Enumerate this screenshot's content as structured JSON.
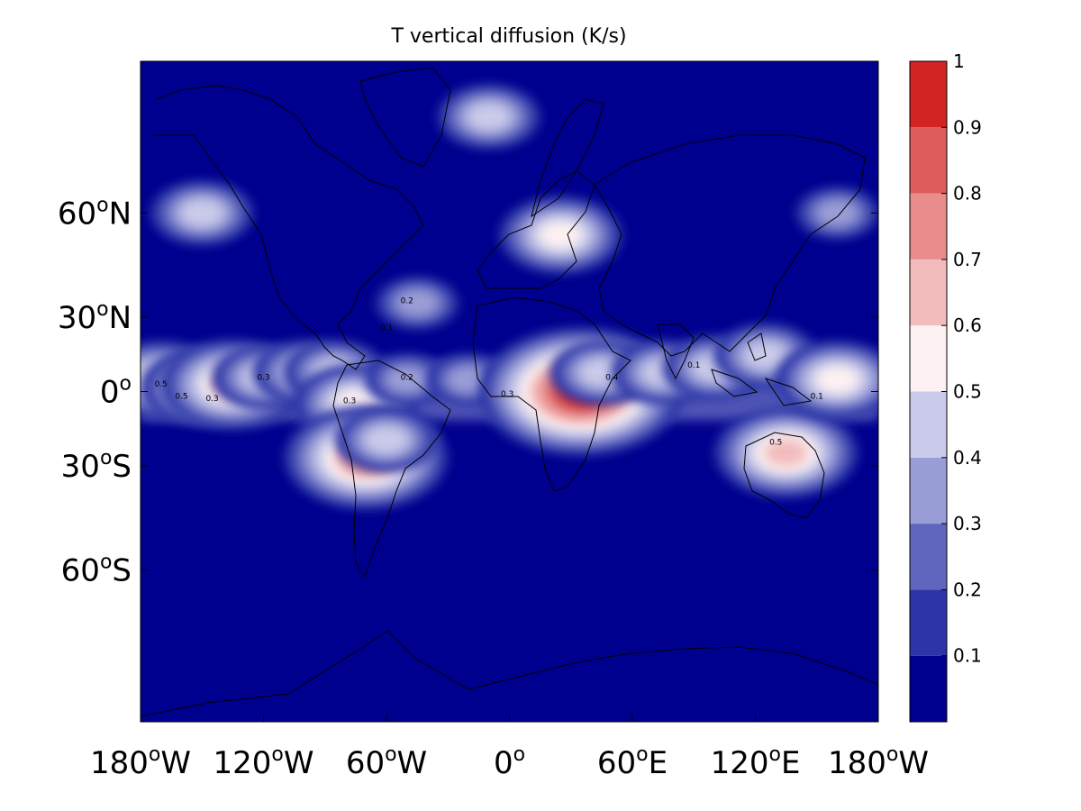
{
  "chart_data": {
    "type": "heatmap",
    "title": "T vertical diffusion (K/s)",
    "projection": "mercator",
    "x_range": [
      -180,
      180
    ],
    "y_range": [
      -80,
      80
    ],
    "x_ticks": [
      {
        "value": -180,
        "label": "180",
        "sup": "o",
        "hem": "W"
      },
      {
        "value": -120,
        "label": "120",
        "sup": "o",
        "hem": "W"
      },
      {
        "value": -60,
        "label": "60",
        "sup": "o",
        "hem": "W"
      },
      {
        "value": 0,
        "label": "0",
        "sup": "o",
        "hem": ""
      },
      {
        "value": 60,
        "label": "60",
        "sup": "o",
        "hem": "E"
      },
      {
        "value": 120,
        "label": "120",
        "sup": "o",
        "hem": "E"
      },
      {
        "value": 180,
        "label": "180",
        "sup": "o",
        "hem": "W"
      }
    ],
    "y_ticks": [
      {
        "value": 60,
        "label": "60",
        "sup": "o",
        "hem": "N"
      },
      {
        "value": 30,
        "label": "30",
        "sup": "o",
        "hem": "N"
      },
      {
        "value": 0,
        "label": "0",
        "sup": "o",
        "hem": ""
      },
      {
        "value": -30,
        "label": "30",
        "sup": "o",
        "hem": "S"
      },
      {
        "value": -60,
        "label": "60",
        "sup": "o",
        "hem": "S"
      }
    ],
    "colorbar": {
      "range": [
        0,
        1
      ],
      "tick_labels": [
        "0.1",
        "0.2",
        "0.3",
        "0.4",
        "0.5",
        "0.6",
        "0.7",
        "0.8",
        "0.9",
        "1"
      ],
      "levels": [
        0,
        0.1,
        0.2,
        0.3,
        0.4,
        0.5,
        0.6,
        0.7,
        0.8,
        0.9,
        1.0
      ],
      "colors": [
        "#00008e",
        "#2c34a6",
        "#6066be",
        "#9a9ed6",
        "#cacbea",
        "#fdf1f1",
        "#f2bcbc",
        "#e88c8c",
        "#dd5c5c",
        "#d32424"
      ]
    },
    "regions": [
      {
        "lon": -170,
        "lat": 5,
        "value": 0.5
      },
      {
        "lon": -150,
        "lat": 2,
        "value": 0.55
      },
      {
        "lon": -135,
        "lat": 3,
        "value": 0.6
      },
      {
        "lon": -120,
        "lat": 6,
        "value": 0.45
      },
      {
        "lon": -100,
        "lat": 8,
        "value": 0.4
      },
      {
        "lon": -85,
        "lat": 8,
        "value": 0.4
      },
      {
        "lon": -75,
        "lat": -5,
        "value": 0.5
      },
      {
        "lon": -70,
        "lat": -27,
        "value": 0.7
      },
      {
        "lon": -60,
        "lat": -20,
        "value": 0.45
      },
      {
        "lon": -50,
        "lat": 5,
        "value": 0.35
      },
      {
        "lon": -20,
        "lat": 5,
        "value": 0.3
      },
      {
        "lon": 15,
        "lat": 3,
        "value": 0.4
      },
      {
        "lon": 35,
        "lat": 0,
        "value": 0.9
      },
      {
        "lon": 25,
        "lat": 55,
        "value": 0.55
      },
      {
        "lon": 45,
        "lat": 8,
        "value": 0.45
      },
      {
        "lon": 75,
        "lat": 8,
        "value": 0.4
      },
      {
        "lon": 100,
        "lat": 10,
        "value": 0.45
      },
      {
        "lon": 125,
        "lat": 15,
        "value": 0.4
      },
      {
        "lon": 135,
        "lat": -25,
        "value": 0.65
      },
      {
        "lon": 160,
        "lat": 5,
        "value": 0.55
      },
      {
        "lon": -150,
        "lat": 60,
        "value": 0.4
      },
      {
        "lon": -45,
        "lat": 35,
        "value": 0.35
      },
      {
        "lon": -10,
        "lat": 75,
        "value": 0.4
      },
      {
        "lon": 160,
        "lat": 60,
        "value": 0.35
      }
    ],
    "contour_labels": [
      {
        "lon": -170,
        "lat": 2,
        "text": "0.5"
      },
      {
        "lon": -160,
        "lat": -3,
        "text": "0.5"
      },
      {
        "lon": -145,
        "lat": -4,
        "text": "0.3"
      },
      {
        "lon": -120,
        "lat": 5,
        "text": "0.3"
      },
      {
        "lon": -50,
        "lat": 35,
        "text": "0.2"
      },
      {
        "lon": -60,
        "lat": 25,
        "text": "0.1"
      },
      {
        "lon": -78,
        "lat": -5,
        "text": "0.3"
      },
      {
        "lon": -50,
        "lat": 5,
        "text": "0.2"
      },
      {
        "lon": -1,
        "lat": -2,
        "text": "0.3"
      },
      {
        "lon": 50,
        "lat": 5,
        "text": "0.4"
      },
      {
        "lon": 130,
        "lat": -22,
        "text": "0.5"
      },
      {
        "lon": 90,
        "lat": 10,
        "text": "0.1"
      },
      {
        "lon": 150,
        "lat": -3,
        "text": "0.1"
      }
    ]
  }
}
